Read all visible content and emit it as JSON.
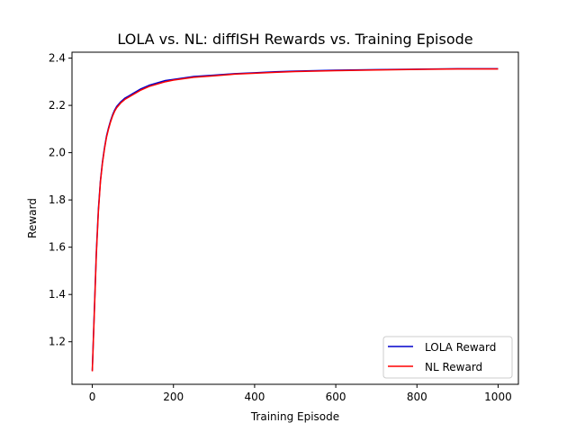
{
  "chart_data": {
    "type": "line",
    "title": "LOLA vs. NL: diffISH Rewards vs. Training Episode",
    "xlabel": "Training Episode",
    "ylabel": "Reward",
    "xlim": [
      -50,
      1050
    ],
    "ylim": [
      1.02,
      2.425
    ],
    "xticks": [
      0,
      200,
      400,
      600,
      800,
      1000
    ],
    "xtick_labels": [
      "0",
      "200",
      "400",
      "600",
      "800",
      "1000"
    ],
    "yticks": [
      1.2,
      1.4,
      1.6,
      1.8,
      2.0,
      2.2,
      2.4
    ],
    "ytick_labels": [
      "1.2",
      "1.4",
      "1.6",
      "1.8",
      "2.0",
      "2.2",
      "2.4"
    ],
    "grid": false,
    "legend_position": "lower-right",
    "x": [
      0,
      5,
      10,
      15,
      20,
      25,
      30,
      35,
      40,
      45,
      50,
      55,
      60,
      70,
      80,
      90,
      100,
      120,
      140,
      160,
      180,
      200,
      250,
      300,
      350,
      400,
      450,
      500,
      600,
      700,
      800,
      900,
      1000
    ],
    "series": [
      {
        "name": "LOLA Reward",
        "color": "#0000cc",
        "values": [
          1.078,
          1.33,
          1.58,
          1.76,
          1.88,
          1.96,
          2.02,
          2.07,
          2.105,
          2.135,
          2.16,
          2.18,
          2.195,
          2.215,
          2.23,
          2.24,
          2.25,
          2.27,
          2.285,
          2.295,
          2.305,
          2.31,
          2.322,
          2.328,
          2.334,
          2.338,
          2.342,
          2.345,
          2.349,
          2.351,
          2.353,
          2.355,
          2.355
        ]
      },
      {
        "name": "NL Reward",
        "color": "#ff0000",
        "values": [
          1.075,
          1.32,
          1.57,
          1.75,
          1.875,
          1.955,
          2.015,
          2.065,
          2.1,
          2.13,
          2.155,
          2.175,
          2.19,
          2.21,
          2.225,
          2.235,
          2.245,
          2.265,
          2.28,
          2.29,
          2.3,
          2.307,
          2.319,
          2.325,
          2.332,
          2.336,
          2.34,
          2.343,
          2.347,
          2.35,
          2.352,
          2.354,
          2.354
        ]
      }
    ]
  }
}
